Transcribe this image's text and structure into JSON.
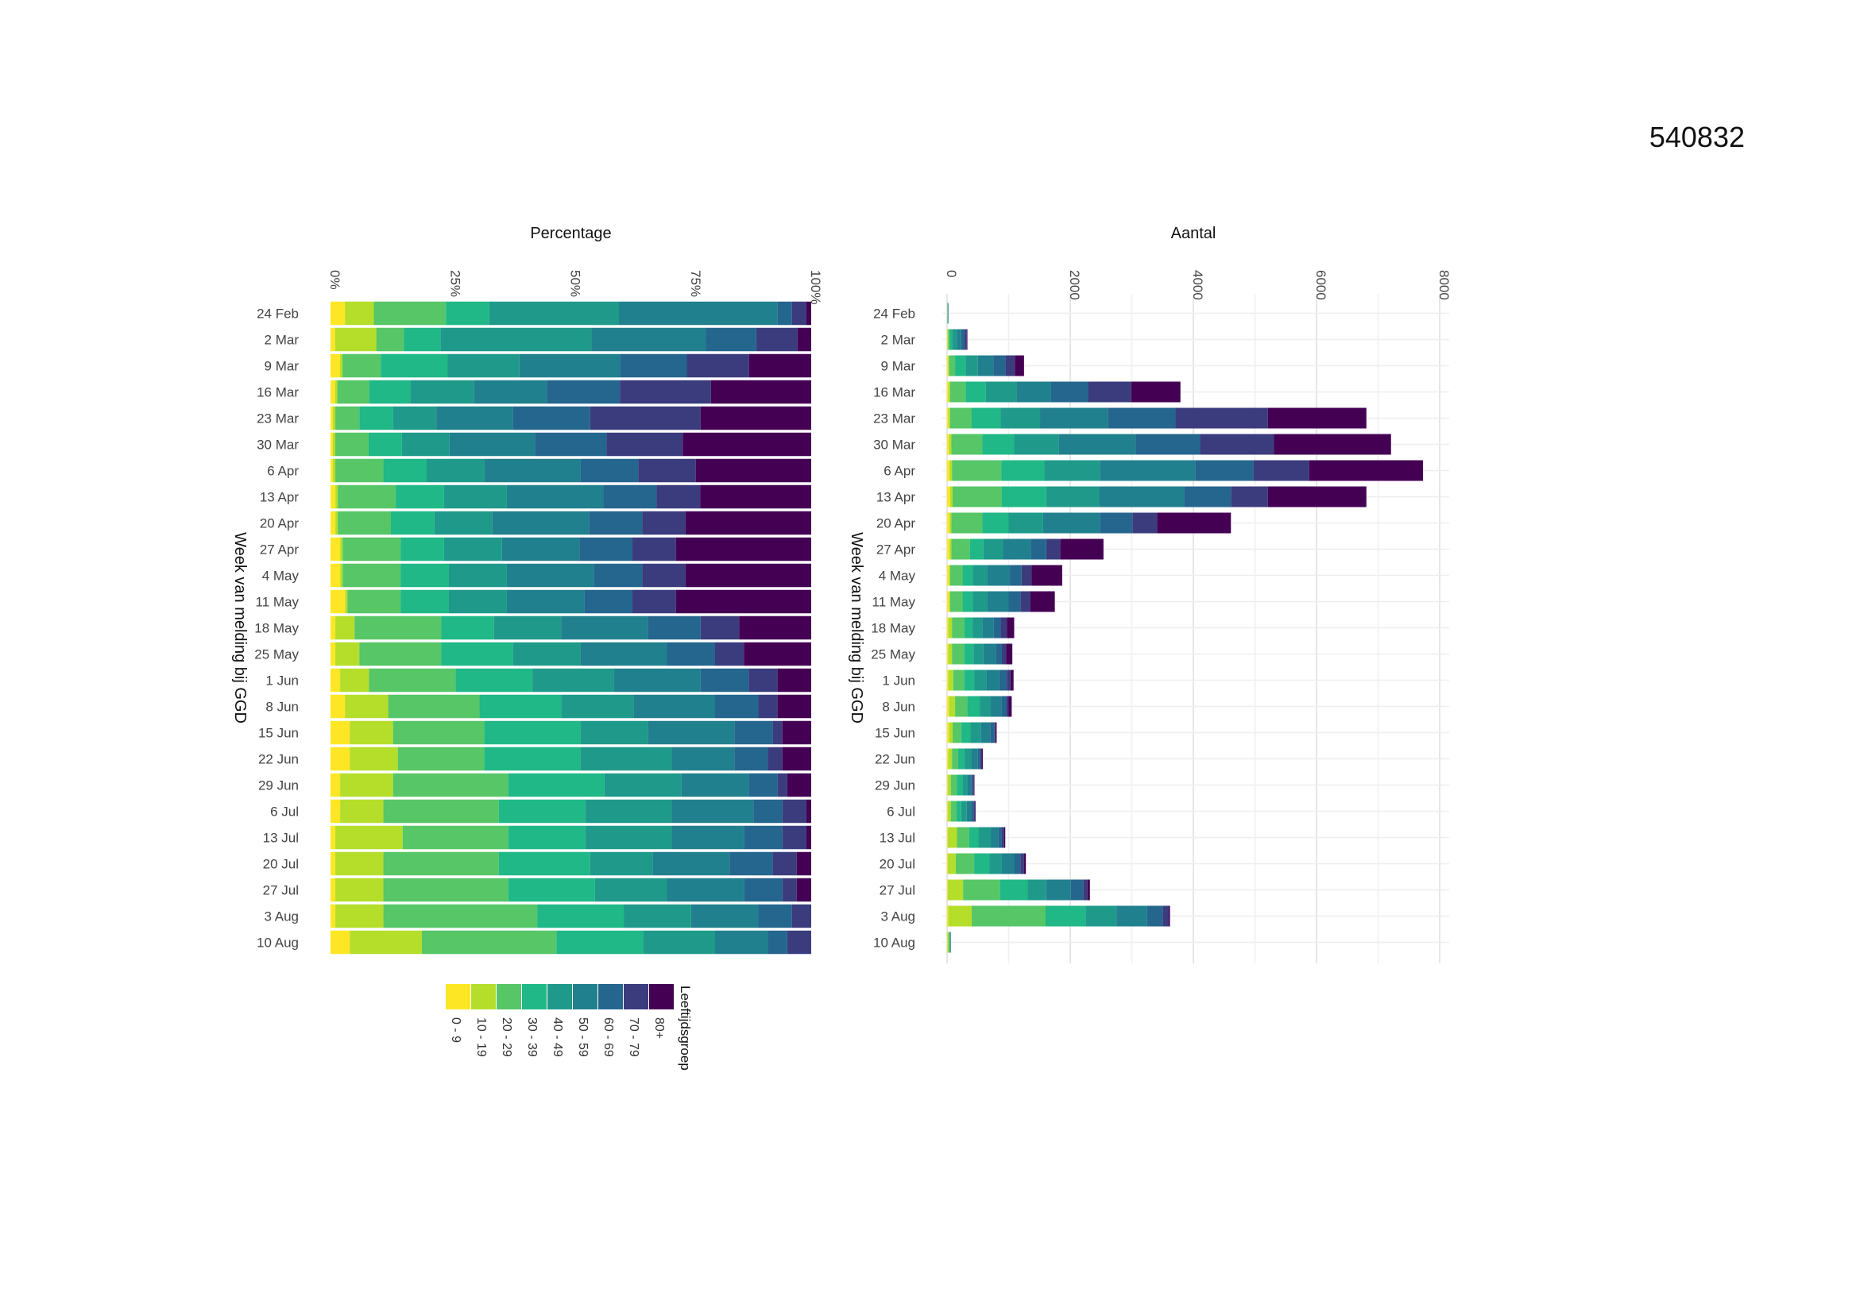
{
  "page": {
    "document_id": "540832"
  },
  "colors": [
    "#FDE725",
    "#B5DE2B",
    "#56C667",
    "#1FB886",
    "#1F9A8A",
    "#21808D",
    "#2A6A8E",
    "#3B528B",
    "#472D7B",
    "#440154"
  ],
  "legend": {
    "title": "Leeftijdsgroep",
    "items": [
      "0 - 9",
      "10 - 19",
      "20 - 29",
      "30 - 39",
      "40 - 49",
      "50 - 59",
      "60 - 69",
      "70 - 79",
      "80+"
    ]
  },
  "chart_data": [
    {
      "type": "bar",
      "orientation": "horizontal",
      "stacked": "percent",
      "title": "Percentage",
      "ylabel": "Week van melding bij GGD",
      "xlim": [
        0,
        100
      ],
      "x_ticks": [
        "0%",
        "25%",
        "50%",
        "75%",
        "100%"
      ],
      "x_tick_values": [
        0,
        25,
        50,
        75,
        100
      ],
      "categories": [
        "24 Feb",
        "2 Mar",
        "9 Mar",
        "16 Mar",
        "23 Mar",
        "30 Mar",
        "6 Apr",
        "13 Apr",
        "20 Apr",
        "27 Apr",
        "4 May",
        "11 May",
        "18 May",
        "25 May",
        "1 Jun",
        "8 Jun",
        "15 Jun",
        "22 Jun",
        "29 Jun",
        "6 Jul",
        "13 Jul",
        "20 Jul",
        "27 Jul",
        "3 Aug",
        "10 Aug"
      ],
      "series": [
        {
          "name": "0 - 9",
          "values": [
            3,
            1,
            2,
            1,
            0.5,
            0.5,
            0.5,
            1,
            1,
            2,
            2,
            3,
            1,
            1,
            2,
            3,
            4,
            4,
            2,
            2,
            1,
            1,
            1,
            1,
            4
          ]
        },
        {
          "name": "10 - 19",
          "values": [
            6,
            9,
            0.5,
            0.5,
            0.5,
            0.5,
            0.5,
            0.5,
            0.5,
            0.5,
            0.5,
            0.5,
            4,
            5,
            6,
            9,
            9,
            10,
            11,
            9,
            14,
            10,
            10,
            10,
            15
          ]
        },
        {
          "name": "20 - 29",
          "values": [
            15,
            6,
            8,
            7,
            5,
            7,
            10,
            12,
            11,
            12,
            12,
            11,
            18,
            17,
            18,
            19,
            19,
            18,
            24,
            24,
            22,
            24,
            26,
            32,
            28
          ]
        },
        {
          "name": "30 - 39",
          "values": [
            9,
            8,
            14,
            9,
            7,
            7,
            9,
            10,
            9,
            9,
            10,
            10,
            11,
            15,
            16,
            17,
            20,
            20,
            20,
            18,
            16,
            19,
            18,
            18,
            18
          ]
        },
        {
          "name": "40 - 49",
          "values": [
            27,
            33,
            15,
            14,
            9,
            10,
            12,
            13,
            12,
            12,
            12,
            12,
            14,
            14,
            17,
            15,
            14,
            19,
            16,
            18,
            18,
            13,
            15,
            14,
            15
          ]
        },
        {
          "name": "50 - 59",
          "values": [
            33,
            25,
            21,
            16,
            16,
            18,
            20,
            20,
            20,
            16,
            18,
            16,
            18,
            18,
            18,
            17,
            18,
            13,
            14,
            17,
            15,
            16,
            16,
            14,
            11
          ]
        },
        {
          "name": "60 - 69",
          "values": [
            3,
            11,
            14,
            16,
            16,
            15,
            12,
            11,
            11,
            11,
            10,
            10,
            11,
            10,
            10,
            9,
            8,
            7,
            6,
            6,
            8,
            9,
            8,
            7,
            4
          ]
        },
        {
          "name": "70 - 79",
          "values": [
            3,
            9,
            13,
            20,
            23,
            16,
            12,
            9,
            9,
            9,
            9,
            9,
            8,
            6,
            6,
            4,
            2,
            3,
            2,
            5,
            5,
            5,
            3,
            4,
            5
          ]
        },
        {
          "name": "80+",
          "values": [
            1,
            3,
            13,
            22,
            23,
            27,
            24,
            23,
            26,
            28,
            26,
            28,
            15,
            14,
            7,
            7,
            6,
            6,
            5,
            1,
            1,
            3,
            3,
            0,
            0
          ]
        }
      ]
    },
    {
      "type": "bar",
      "orientation": "horizontal",
      "stacked": true,
      "title": "Aantal",
      "ylabel": "Week van melding bij GGD",
      "xlim": [
        0,
        8000
      ],
      "x_ticks": [
        "0",
        "2000",
        "4000",
        "6000",
        "8000"
      ],
      "x_tick_values": [
        0,
        2000,
        4000,
        6000,
        8000
      ],
      "categories": [
        "24 Feb",
        "2 Mar",
        "9 Mar",
        "16 Mar",
        "23 Mar",
        "30 Mar",
        "6 Apr",
        "13 Apr",
        "20 Apr",
        "27 Apr",
        "4 May",
        "11 May",
        "18 May",
        "25 May",
        "1 Jun",
        "8 Jun",
        "15 Jun",
        "22 Jun",
        "29 Jun",
        "6 Jul",
        "13 Jul",
        "20 Jul",
        "27 Jul",
        "3 Aug",
        "10 Aug"
      ],
      "series": [
        {
          "name": "0 - 9",
          "values": [
            0,
            5,
            20,
            20,
            20,
            30,
            40,
            50,
            40,
            40,
            30,
            30,
            20,
            20,
            20,
            30,
            30,
            20,
            10,
            10,
            10,
            10,
            10,
            20,
            5
          ]
        },
        {
          "name": "10 - 19",
          "values": [
            3,
            15,
            10,
            30,
            30,
            40,
            40,
            40,
            30,
            30,
            20,
            20,
            60,
            60,
            80,
            100,
            60,
            60,
            50,
            50,
            150,
            130,
            250,
            380,
            20
          ]
        },
        {
          "name": "20 - 29",
          "values": [
            6,
            20,
            100,
            250,
            350,
            500,
            800,
            800,
            500,
            300,
            200,
            200,
            200,
            200,
            180,
            200,
            140,
            100,
            100,
            90,
            200,
            300,
            600,
            1200,
            15
          ]
        },
        {
          "name": "30 - 39",
          "values": [
            3,
            40,
            170,
            330,
            470,
            520,
            700,
            720,
            430,
            220,
            170,
            170,
            130,
            150,
            160,
            200,
            150,
            100,
            90,
            80,
            150,
            250,
            450,
            650,
            10
          ]
        },
        {
          "name": "40 - 49",
          "values": [
            5,
            80,
            200,
            500,
            640,
            720,
            900,
            860,
            560,
            320,
            230,
            230,
            160,
            160,
            200,
            180,
            170,
            120,
            80,
            90,
            200,
            200,
            300,
            500,
            5
          ]
        },
        {
          "name": "50 - 59",
          "values": [
            5,
            70,
            250,
            560,
            1100,
            1250,
            1550,
            1380,
            920,
            450,
            370,
            350,
            190,
            200,
            210,
            170,
            150,
            100,
            60,
            80,
            120,
            200,
            400,
            500,
            5
          ]
        },
        {
          "name": "60 - 69",
          "values": [
            2,
            60,
            200,
            600,
            1100,
            1050,
            950,
            760,
            530,
            250,
            190,
            190,
            110,
            100,
            120,
            80,
            70,
            40,
            30,
            30,
            60,
            100,
            200,
            250,
            3
          ]
        },
        {
          "name": "70 - 79",
          "values": [
            1,
            30,
            150,
            700,
            1500,
            1200,
            900,
            600,
            400,
            230,
            160,
            160,
            100,
            70,
            60,
            40,
            15,
            20,
            15,
            30,
            35,
            60,
            70,
            100,
            2
          ]
        },
        {
          "name": "80+",
          "values": [
            0,
            10,
            150,
            800,
            1600,
            1900,
            1850,
            1600,
            1200,
            700,
            500,
            400,
            120,
            100,
            50,
            50,
            20,
            20,
            10,
            5,
            20,
            30,
            40,
            20,
            0
          ]
        }
      ]
    }
  ]
}
